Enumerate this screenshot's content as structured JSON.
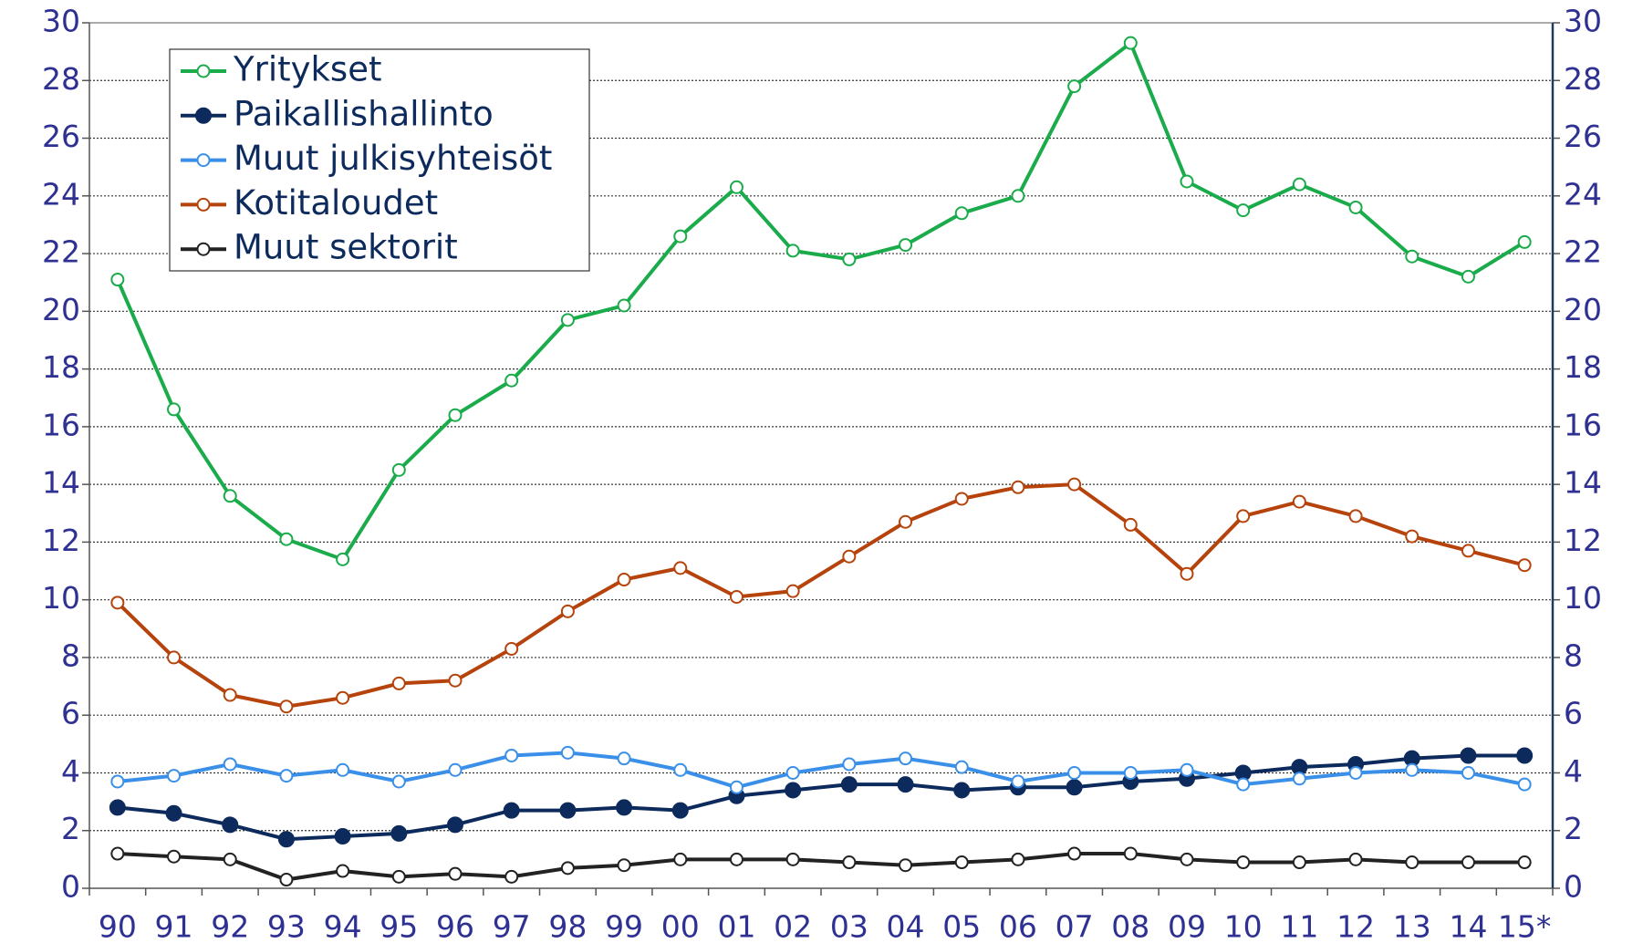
{
  "chart_data": {
    "type": "line",
    "categories": [
      "90",
      "91",
      "92",
      "93",
      "94",
      "95",
      "96",
      "97",
      "98",
      "99",
      "00",
      "01",
      "02",
      "03",
      "04",
      "05",
      "06",
      "07",
      "08",
      "09",
      "10",
      "11",
      "12",
      "13",
      "14",
      "15*"
    ],
    "series": [
      {
        "name": "Yritykset",
        "color": "#1aab4b",
        "filled": false,
        "values": [
          21.1,
          16.6,
          13.6,
          12.1,
          11.4,
          14.5,
          16.4,
          17.6,
          19.7,
          20.2,
          22.6,
          24.3,
          22.1,
          21.8,
          22.3,
          23.4,
          24.0,
          27.8,
          29.3,
          24.5,
          23.5,
          24.4,
          23.6,
          21.9,
          21.2,
          22.4
        ]
      },
      {
        "name": "Paikallishallinto",
        "color": "#0d2a5c",
        "filled": true,
        "values": [
          2.8,
          2.6,
          2.2,
          1.7,
          1.8,
          1.9,
          2.2,
          2.7,
          2.7,
          2.8,
          2.7,
          3.2,
          3.4,
          3.6,
          3.6,
          3.4,
          3.5,
          3.5,
          3.7,
          3.8,
          4.0,
          4.2,
          4.3,
          4.5,
          4.6,
          4.6
        ]
      },
      {
        "name": "Muut julkisyhteisöt",
        "color": "#3a8fe8",
        "filled": false,
        "values": [
          3.7,
          3.9,
          4.3,
          3.9,
          4.1,
          3.7,
          4.1,
          4.6,
          4.7,
          4.5,
          4.1,
          3.5,
          4.0,
          4.3,
          4.5,
          4.2,
          3.7,
          4.0,
          4.0,
          4.1,
          3.6,
          3.8,
          4.0,
          4.1,
          4.0,
          3.6
        ]
      },
      {
        "name": "Kotitaloudet",
        "color": "#b5430b",
        "filled": false,
        "values": [
          9.9,
          8.0,
          6.7,
          6.3,
          6.6,
          7.1,
          7.2,
          8.3,
          9.6,
          10.7,
          11.1,
          10.1,
          10.3,
          11.5,
          12.7,
          13.5,
          13.9,
          14.0,
          12.6,
          10.9,
          12.9,
          13.4,
          12.9,
          12.2,
          11.7,
          11.2
        ]
      },
      {
        "name": "Muut sektorit",
        "color": "#222222",
        "filled": false,
        "values": [
          1.2,
          1.1,
          1.0,
          0.3,
          0.6,
          0.4,
          0.5,
          0.4,
          0.7,
          0.8,
          1.0,
          1.0,
          1.0,
          0.9,
          0.8,
          0.9,
          1.0,
          1.2,
          1.2,
          1.0,
          0.9,
          0.9,
          1.0,
          0.9,
          0.9,
          0.9
        ]
      }
    ],
    "ylim": [
      0,
      30
    ],
    "yticks": [
      0,
      2,
      4,
      6,
      8,
      10,
      12,
      14,
      16,
      18,
      20,
      22,
      24,
      26,
      28,
      30
    ],
    "y2lim": [
      0,
      30
    ],
    "y2ticks": [
      0,
      2,
      4,
      6,
      8,
      10,
      12,
      14,
      16,
      18,
      20,
      22,
      24,
      26,
      28,
      30
    ],
    "grid": true,
    "legend": "upper left"
  }
}
